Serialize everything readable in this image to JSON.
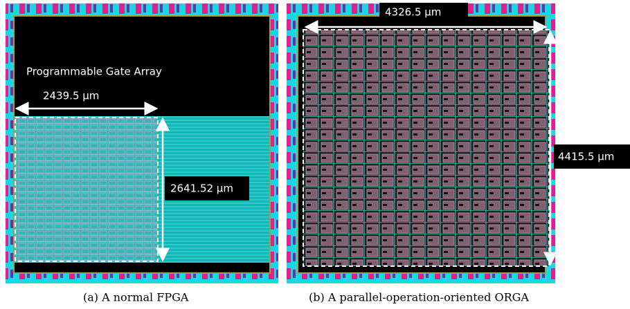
{
  "panels": [
    {
      "title": "Programmable Gate Array",
      "width_label": "2439.5 µm",
      "height_label": "2641.52 µm",
      "caption": "(a) A normal FPGA"
    },
    {
      "width_label": "4326.5 µm",
      "height_label": "4415.5 µm",
      "caption": "(b) A parallel-operation-oriented ORGA"
    }
  ]
}
